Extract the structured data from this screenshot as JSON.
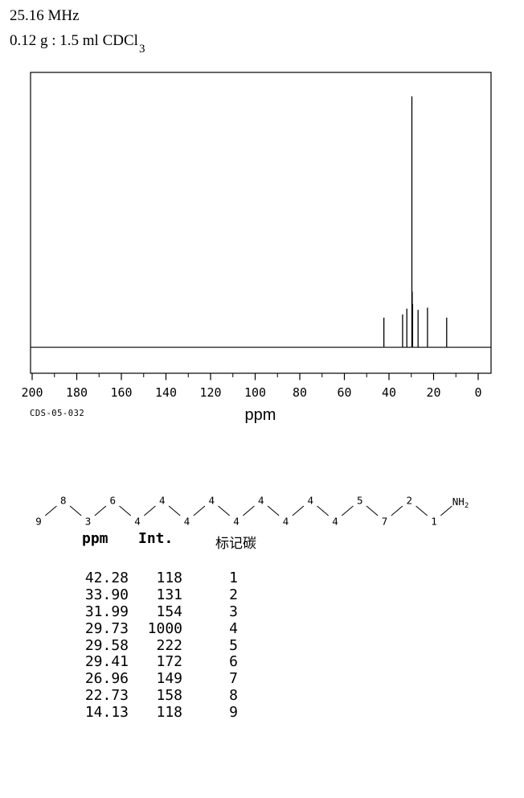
{
  "header": {
    "frequency": "25.16 MHz",
    "sample_main": "0.12 g : 1.5 ml CDCl",
    "sample_sub": "3"
  },
  "chart_data": {
    "type": "line",
    "subtype": "13C NMR spectrum",
    "xlabel": "ppm",
    "x_range": [
      200,
      0
    ],
    "x_major_ticks": [
      "200",
      "180",
      "160",
      "140",
      "120",
      "100",
      "80",
      "60",
      "40",
      "20",
      "0"
    ],
    "x_minor_step": 10,
    "ylim": [
      0,
      1000
    ],
    "grid": "off",
    "annotation": "CDS-05-032",
    "max_intensity": 1000,
    "peaks": [
      {
        "ppm": 42.28,
        "intensity": 118,
        "carbon": "1"
      },
      {
        "ppm": 33.9,
        "intensity": 131,
        "carbon": "2"
      },
      {
        "ppm": 31.99,
        "intensity": 154,
        "carbon": "3"
      },
      {
        "ppm": 29.73,
        "intensity": 1000,
        "carbon": "4"
      },
      {
        "ppm": 29.58,
        "intensity": 222,
        "carbon": "5"
      },
      {
        "ppm": 29.41,
        "intensity": 172,
        "carbon": "6"
      },
      {
        "ppm": 26.96,
        "intensity": 149,
        "carbon": "7"
      },
      {
        "ppm": 22.73,
        "intensity": 158,
        "carbon": "8"
      },
      {
        "ppm": 14.13,
        "intensity": 118,
        "carbon": "9"
      }
    ]
  },
  "structure": {
    "vertex_labels": [
      "9",
      "8",
      "3",
      "6",
      "4",
      "4",
      "4",
      "4",
      "4",
      "4",
      "4",
      "4",
      "4",
      "5",
      "7",
      "2",
      "1"
    ],
    "terminal_group_main": "NH",
    "terminal_group_sub": "2"
  },
  "table": {
    "headers": [
      "ppm",
      "Int.",
      "标记碳"
    ],
    "rows": [
      [
        "42.28",
        "118",
        "1"
      ],
      [
        "33.90",
        "131",
        "2"
      ],
      [
        "31.99",
        "154",
        "3"
      ],
      [
        "29.73",
        "1000",
        "4"
      ],
      [
        "29.58",
        "222",
        "5"
      ],
      [
        "29.41",
        "172",
        "6"
      ],
      [
        "26.96",
        "149",
        "7"
      ],
      [
        "22.73",
        "158",
        "8"
      ],
      [
        "14.13",
        "118",
        "9"
      ]
    ]
  },
  "colors": {
    "ink": "#000000",
    "background": "#ffffff"
  }
}
